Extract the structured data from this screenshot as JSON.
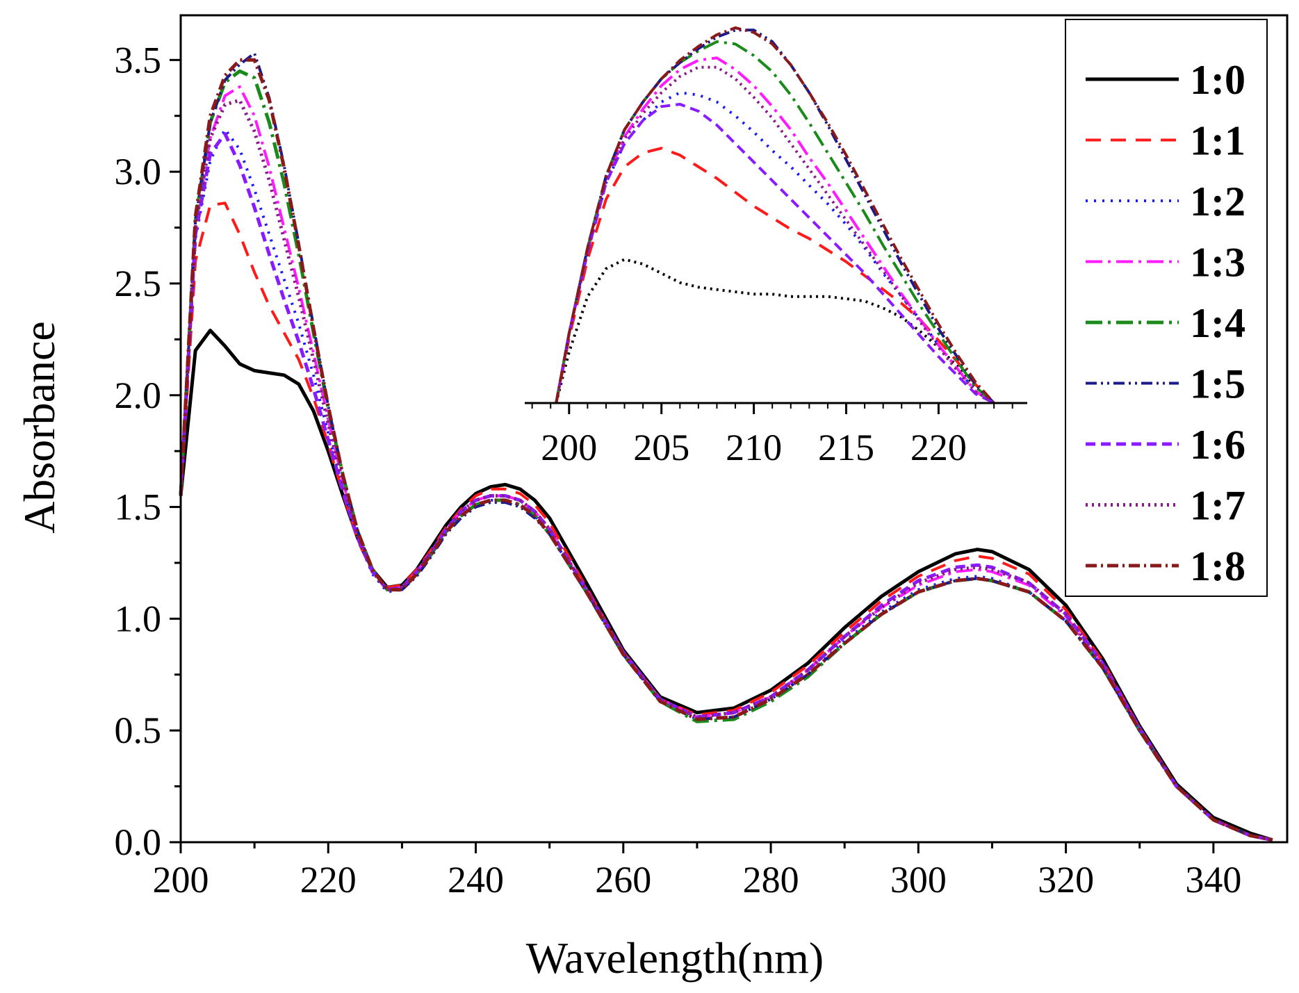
{
  "chart_data": [
    {
      "type": "line",
      "xlabel": "Wavelength(nm)",
      "ylabel": "Absorbance",
      "xlim": [
        200,
        350
      ],
      "ylim": [
        0.0,
        3.7
      ],
      "xticks": [
        "200",
        "220",
        "240",
        "260",
        "280",
        "300",
        "320",
        "340"
      ],
      "yticks": [
        "0.0",
        "0.5",
        "1.0",
        "1.5",
        "2.0",
        "2.5",
        "3.0",
        "3.5"
      ],
      "grid": false,
      "legend_position": "top-right",
      "x": [
        200,
        202,
        204,
        206,
        208,
        210,
        212,
        214,
        216,
        218,
        220,
        222,
        224,
        226,
        228,
        230,
        232,
        234,
        236,
        238,
        240,
        242,
        244,
        246,
        248,
        250,
        255,
        260,
        265,
        270,
        275,
        280,
        285,
        290,
        295,
        300,
        305,
        308,
        310,
        315,
        320,
        325,
        330,
        335,
        340,
        345,
        348
      ],
      "series": [
        {
          "name": "1:0",
          "color": "#000000",
          "dash": "solid",
          "width": 5,
          "values": [
            1.55,
            2.2,
            2.29,
            2.22,
            2.14,
            2.11,
            2.1,
            2.09,
            2.05,
            1.93,
            1.75,
            1.55,
            1.36,
            1.22,
            1.14,
            1.15,
            1.22,
            1.32,
            1.42,
            1.5,
            1.56,
            1.59,
            1.6,
            1.58,
            1.53,
            1.45,
            1.16,
            0.86,
            0.65,
            0.58,
            0.6,
            0.68,
            0.8,
            0.96,
            1.1,
            1.21,
            1.29,
            1.31,
            1.3,
            1.22,
            1.06,
            0.82,
            0.52,
            0.26,
            0.11,
            0.04,
            0.01
          ]
        },
        {
          "name": "1:1",
          "color": "#ff1a1a",
          "dash": "22,14",
          "width": 4,
          "values": [
            1.55,
            2.6,
            2.85,
            2.86,
            2.72,
            2.55,
            2.4,
            2.28,
            2.16,
            1.99,
            1.78,
            1.56,
            1.35,
            1.21,
            1.14,
            1.15,
            1.22,
            1.31,
            1.41,
            1.49,
            1.55,
            1.58,
            1.58,
            1.56,
            1.51,
            1.43,
            1.14,
            0.85,
            0.64,
            0.57,
            0.59,
            0.67,
            0.79,
            0.94,
            1.08,
            1.19,
            1.26,
            1.28,
            1.27,
            1.2,
            1.04,
            0.81,
            0.51,
            0.25,
            0.1,
            0.03,
            0.01
          ]
        },
        {
          "name": "1:2",
          "color": "#1a1aff",
          "dash": "3,9",
          "width": 4,
          "values": [
            1.55,
            2.7,
            3.05,
            3.19,
            3.1,
            2.92,
            2.72,
            2.52,
            2.32,
            2.09,
            1.83,
            1.58,
            1.36,
            1.2,
            1.12,
            1.13,
            1.2,
            1.29,
            1.39,
            1.46,
            1.51,
            1.53,
            1.53,
            1.51,
            1.46,
            1.38,
            1.12,
            0.84,
            0.63,
            0.55,
            0.56,
            0.64,
            0.75,
            0.9,
            1.03,
            1.13,
            1.18,
            1.19,
            1.18,
            1.12,
            0.99,
            0.78,
            0.5,
            0.25,
            0.1,
            0.03,
            0.01
          ]
        },
        {
          "name": "1:3",
          "color": "#ff1aff",
          "dash": "24,8,4,8",
          "width": 4,
          "values": [
            1.55,
            2.75,
            3.15,
            3.34,
            3.38,
            3.25,
            3.02,
            2.75,
            2.48,
            2.19,
            1.89,
            1.61,
            1.38,
            1.22,
            1.13,
            1.14,
            1.21,
            1.3,
            1.4,
            1.48,
            1.53,
            1.55,
            1.55,
            1.53,
            1.48,
            1.4,
            1.13,
            0.85,
            0.64,
            0.56,
            0.58,
            0.65,
            0.77,
            0.92,
            1.05,
            1.15,
            1.21,
            1.22,
            1.21,
            1.15,
            1.01,
            0.79,
            0.51,
            0.25,
            0.1,
            0.03,
            0.01
          ]
        },
        {
          "name": "1:4",
          "color": "#1a8a1a",
          "dash": "24,8,4,8",
          "width": 5,
          "values": [
            1.55,
            2.78,
            3.22,
            3.4,
            3.45,
            3.42,
            3.22,
            2.95,
            2.63,
            2.28,
            1.94,
            1.64,
            1.39,
            1.22,
            1.13,
            1.13,
            1.2,
            1.29,
            1.39,
            1.46,
            1.51,
            1.53,
            1.53,
            1.51,
            1.46,
            1.38,
            1.12,
            0.84,
            0.63,
            0.54,
            0.55,
            0.63,
            0.74,
            0.89,
            1.02,
            1.12,
            1.17,
            1.18,
            1.17,
            1.12,
            0.99,
            0.78,
            0.5,
            0.25,
            0.1,
            0.03,
            0.01
          ]
        },
        {
          "name": "1:5",
          "color": "#1a1a8a",
          "dash": "16,6,3,6,3,6",
          "width": 4,
          "values": [
            1.55,
            2.78,
            3.22,
            3.41,
            3.48,
            3.53,
            3.33,
            3.03,
            2.68,
            2.31,
            1.95,
            1.64,
            1.39,
            1.22,
            1.13,
            1.13,
            1.19,
            1.28,
            1.38,
            1.45,
            1.5,
            1.52,
            1.52,
            1.5,
            1.45,
            1.38,
            1.12,
            0.84,
            0.63,
            0.55,
            0.56,
            0.64,
            0.75,
            0.89,
            1.02,
            1.12,
            1.17,
            1.18,
            1.17,
            1.12,
            0.99,
            0.78,
            0.5,
            0.25,
            0.1,
            0.03,
            0.01
          ]
        },
        {
          "name": "1:6",
          "color": "#8a1aff",
          "dash": "14,8",
          "width": 5,
          "values": [
            1.55,
            2.72,
            3.08,
            3.17,
            3.03,
            2.84,
            2.63,
            2.43,
            2.24,
            2.03,
            1.8,
            1.57,
            1.36,
            1.21,
            1.13,
            1.14,
            1.21,
            1.3,
            1.4,
            1.48,
            1.53,
            1.55,
            1.55,
            1.53,
            1.48,
            1.4,
            1.13,
            0.85,
            0.64,
            0.56,
            0.58,
            0.65,
            0.77,
            0.92,
            1.06,
            1.17,
            1.23,
            1.24,
            1.23,
            1.16,
            1.02,
            0.8,
            0.51,
            0.25,
            0.1,
            0.03,
            0.01
          ]
        },
        {
          "name": "1:7",
          "color": "#8a1a8a",
          "dash": "3,6",
          "width": 5,
          "values": [
            1.55,
            2.75,
            3.15,
            3.3,
            3.32,
            3.18,
            2.96,
            2.7,
            2.44,
            2.16,
            1.87,
            1.6,
            1.37,
            1.21,
            1.13,
            1.14,
            1.21,
            1.3,
            1.4,
            1.48,
            1.53,
            1.55,
            1.55,
            1.53,
            1.48,
            1.4,
            1.13,
            0.85,
            0.64,
            0.56,
            0.58,
            0.65,
            0.77,
            0.92,
            1.05,
            1.16,
            1.22,
            1.23,
            1.22,
            1.16,
            1.02,
            0.8,
            0.51,
            0.25,
            0.1,
            0.03,
            0.01
          ]
        },
        {
          "name": "1:8",
          "color": "#8a1a1a",
          "dash": "16,6,3,6",
          "width": 5,
          "values": [
            1.55,
            2.8,
            3.25,
            3.43,
            3.5,
            3.5,
            3.32,
            3.02,
            2.67,
            2.3,
            1.95,
            1.64,
            1.39,
            1.22,
            1.13,
            1.13,
            1.2,
            1.29,
            1.39,
            1.46,
            1.51,
            1.53,
            1.53,
            1.51,
            1.46,
            1.38,
            1.12,
            0.84,
            0.63,
            0.55,
            0.56,
            0.64,
            0.75,
            0.89,
            1.02,
            1.12,
            1.17,
            1.18,
            1.17,
            1.12,
            0.99,
            0.78,
            0.5,
            0.25,
            0.1,
            0.03,
            0.01
          ]
        }
      ]
    },
    {
      "type": "line",
      "xlabel": "",
      "ylabel": "",
      "xlim": [
        197.6,
        224.8
      ],
      "ylim": [
        2.0,
        3.65
      ],
      "xticks": [
        "200",
        "205",
        "210",
        "215",
        "220"
      ],
      "x": [
        199.3,
        200,
        201,
        202,
        203,
        204,
        205,
        206,
        207,
        208,
        209,
        210,
        211,
        212,
        213,
        214,
        215,
        216,
        217,
        218,
        219,
        220,
        221,
        222,
        223
      ],
      "series": [
        {
          "name": "1:0",
          "color": "#000000",
          "dash": "3,6",
          "values": [
            2.0,
            2.22,
            2.46,
            2.58,
            2.62,
            2.6,
            2.56,
            2.52,
            2.5,
            2.49,
            2.48,
            2.47,
            2.47,
            2.46,
            2.46,
            2.46,
            2.45,
            2.44,
            2.41,
            2.37,
            2.31,
            2.24,
            2.16,
            2.07,
            2.0
          ]
        },
        {
          "name": "1:1",
          "color": "#ff1a1a",
          "dash": "22,14",
          "values": [
            2.0,
            2.28,
            2.62,
            2.88,
            3.02,
            3.08,
            3.1,
            3.07,
            3.02,
            2.97,
            2.91,
            2.85,
            2.8,
            2.75,
            2.71,
            2.66,
            2.61,
            2.55,
            2.49,
            2.43,
            2.36,
            2.27,
            2.18,
            2.08,
            2.0
          ]
        },
        {
          "name": "1:2",
          "color": "#1a1aff",
          "dash": "3,9",
          "values": [
            2.0,
            2.3,
            2.65,
            2.95,
            3.12,
            3.22,
            3.3,
            3.34,
            3.33,
            3.3,
            3.24,
            3.17,
            3.09,
            3.02,
            2.94,
            2.86,
            2.77,
            2.67,
            2.56,
            2.46,
            2.36,
            2.25,
            2.15,
            2.05,
            2.0
          ]
        },
        {
          "name": "1:3",
          "color": "#ff1aff",
          "dash": "24,8,4,8",
          "values": [
            2.0,
            2.3,
            2.66,
            2.97,
            3.15,
            3.27,
            3.37,
            3.44,
            3.48,
            3.49,
            3.44,
            3.37,
            3.28,
            3.18,
            3.06,
            2.95,
            2.83,
            2.71,
            2.59,
            2.47,
            2.36,
            2.25,
            2.15,
            2.05,
            2.0
          ]
        },
        {
          "name": "1:4",
          "color": "#1a8a1a",
          "dash": "24,8,4,8",
          "values": [
            2.0,
            2.3,
            2.67,
            2.98,
            3.18,
            3.3,
            3.4,
            3.47,
            3.52,
            3.56,
            3.55,
            3.5,
            3.43,
            3.33,
            3.21,
            3.08,
            2.95,
            2.82,
            2.68,
            2.55,
            2.42,
            2.3,
            2.18,
            2.07,
            2.0
          ]
        },
        {
          "name": "1:5",
          "color": "#1a1a8a",
          "dash": "16,6,3,6,3,6",
          "values": [
            2.0,
            2.3,
            2.67,
            2.98,
            3.18,
            3.3,
            3.4,
            3.47,
            3.53,
            3.58,
            3.61,
            3.61,
            3.56,
            3.46,
            3.34,
            3.2,
            3.05,
            2.9,
            2.75,
            2.6,
            2.46,
            2.32,
            2.2,
            2.08,
            2.0
          ]
        },
        {
          "name": "1:6",
          "color": "#8a1aff",
          "dash": "14,8",
          "values": [
            2.0,
            2.3,
            2.65,
            2.95,
            3.12,
            3.22,
            3.28,
            3.29,
            3.26,
            3.2,
            3.12,
            3.04,
            2.96,
            2.88,
            2.8,
            2.72,
            2.64,
            2.56,
            2.47,
            2.38,
            2.29,
            2.2,
            2.12,
            2.04,
            2.0
          ]
        },
        {
          "name": "1:7",
          "color": "#8a1a8a",
          "dash": "3,6",
          "values": [
            2.0,
            2.3,
            2.66,
            2.97,
            3.14,
            3.25,
            3.34,
            3.41,
            3.45,
            3.45,
            3.4,
            3.32,
            3.23,
            3.12,
            3.01,
            2.9,
            2.79,
            2.68,
            2.57,
            2.46,
            2.35,
            2.24,
            2.14,
            2.05,
            2.0
          ]
        },
        {
          "name": "1:8",
          "color": "#8a1a1a",
          "dash": "16,6,3,6",
          "values": [
            2.0,
            2.3,
            2.67,
            2.98,
            3.18,
            3.3,
            3.4,
            3.48,
            3.54,
            3.59,
            3.62,
            3.6,
            3.55,
            3.46,
            3.34,
            3.21,
            3.07,
            2.92,
            2.77,
            2.62,
            2.48,
            2.34,
            2.21,
            2.09,
            2.0
          ]
        }
      ]
    }
  ]
}
